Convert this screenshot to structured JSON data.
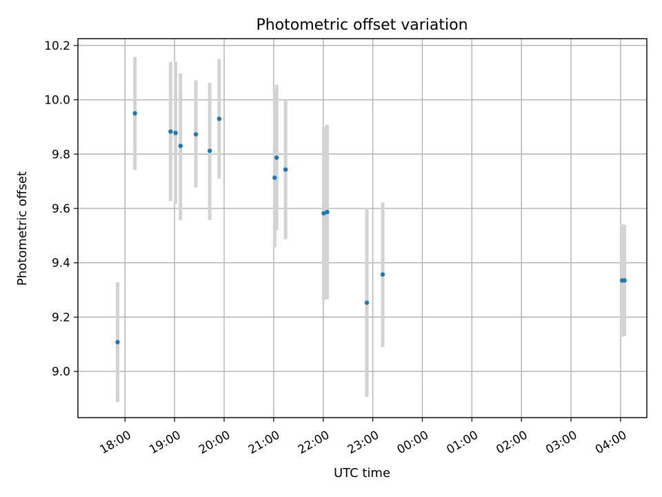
{
  "chart_data": {
    "type": "scatter",
    "title": "Photometric offset variation",
    "xlabel": "UTC time",
    "ylabel": "Photometric offset",
    "x_unit": "hours since 00:00 of first night (values >= 24 are after midnight)",
    "xlim": [
      17.05,
      28.53
    ],
    "ylim": [
      8.83,
      10.225
    ],
    "x_ticks": [
      {
        "value": 18,
        "label": "18:00"
      },
      {
        "value": 19,
        "label": "19:00"
      },
      {
        "value": 20,
        "label": "20:00"
      },
      {
        "value": 21,
        "label": "21:00"
      },
      {
        "value": 22,
        "label": "22:00"
      },
      {
        "value": 23,
        "label": "23:00"
      },
      {
        "value": 24,
        "label": "00:00"
      },
      {
        "value": 25,
        "label": "01:00"
      },
      {
        "value": 26,
        "label": "02:00"
      },
      {
        "value": 27,
        "label": "03:00"
      },
      {
        "value": 28,
        "label": "04:00"
      }
    ],
    "y_ticks": [
      {
        "value": 9.0,
        "label": "9.0"
      },
      {
        "value": 9.2,
        "label": "9.2"
      },
      {
        "value": 9.4,
        "label": "9.4"
      },
      {
        "value": 9.6,
        "label": "9.6"
      },
      {
        "value": 9.8,
        "label": "9.8"
      },
      {
        "value": 10.0,
        "label": "10.0"
      },
      {
        "value": 10.2,
        "label": "10.2"
      }
    ],
    "grid": true,
    "colors": {
      "points": "#1f77b4",
      "error_bars": "#d3d3d3",
      "grid": "#b0b0b0"
    },
    "points": [
      {
        "x": 17.85,
        "y": 9.108,
        "ylow": 8.887,
        "yhigh": 9.328
      },
      {
        "x": 18.2,
        "y": 9.95,
        "ylow": 9.742,
        "yhigh": 10.158
      },
      {
        "x": 18.92,
        "y": 9.883,
        "ylow": 9.627,
        "yhigh": 10.14
      },
      {
        "x": 19.02,
        "y": 9.878,
        "ylow": 9.617,
        "yhigh": 10.14
      },
      {
        "x": 19.12,
        "y": 9.83,
        "ylow": 9.557,
        "yhigh": 10.097
      },
      {
        "x": 19.43,
        "y": 9.873,
        "ylow": 9.677,
        "yhigh": 10.072
      },
      {
        "x": 19.71,
        "y": 9.812,
        "ylow": 9.557,
        "yhigh": 10.062
      },
      {
        "x": 19.9,
        "y": 9.93,
        "ylow": 9.71,
        "yhigh": 10.15
      },
      {
        "x": 21.02,
        "y": 9.713,
        "ylow": 9.457,
        "yhigh": 10.035
      },
      {
        "x": 21.06,
        "y": 9.787,
        "ylow": 9.52,
        "yhigh": 10.055
      },
      {
        "x": 21.24,
        "y": 9.743,
        "ylow": 9.487,
        "yhigh": 10.0
      },
      {
        "x": 22.01,
        "y": 9.582,
        "ylow": 9.262,
        "yhigh": 9.902
      },
      {
        "x": 22.08,
        "y": 9.587,
        "ylow": 9.265,
        "yhigh": 9.908
      },
      {
        "x": 22.88,
        "y": 9.253,
        "ylow": 8.907,
        "yhigh": 9.602
      },
      {
        "x": 23.2,
        "y": 9.357,
        "ylow": 9.09,
        "yhigh": 9.622
      },
      {
        "x": 28.03,
        "y": 9.335,
        "ylow": 9.128,
        "yhigh": 9.542
      },
      {
        "x": 28.08,
        "y": 9.335,
        "ylow": 9.13,
        "yhigh": 9.54
      }
    ]
  }
}
